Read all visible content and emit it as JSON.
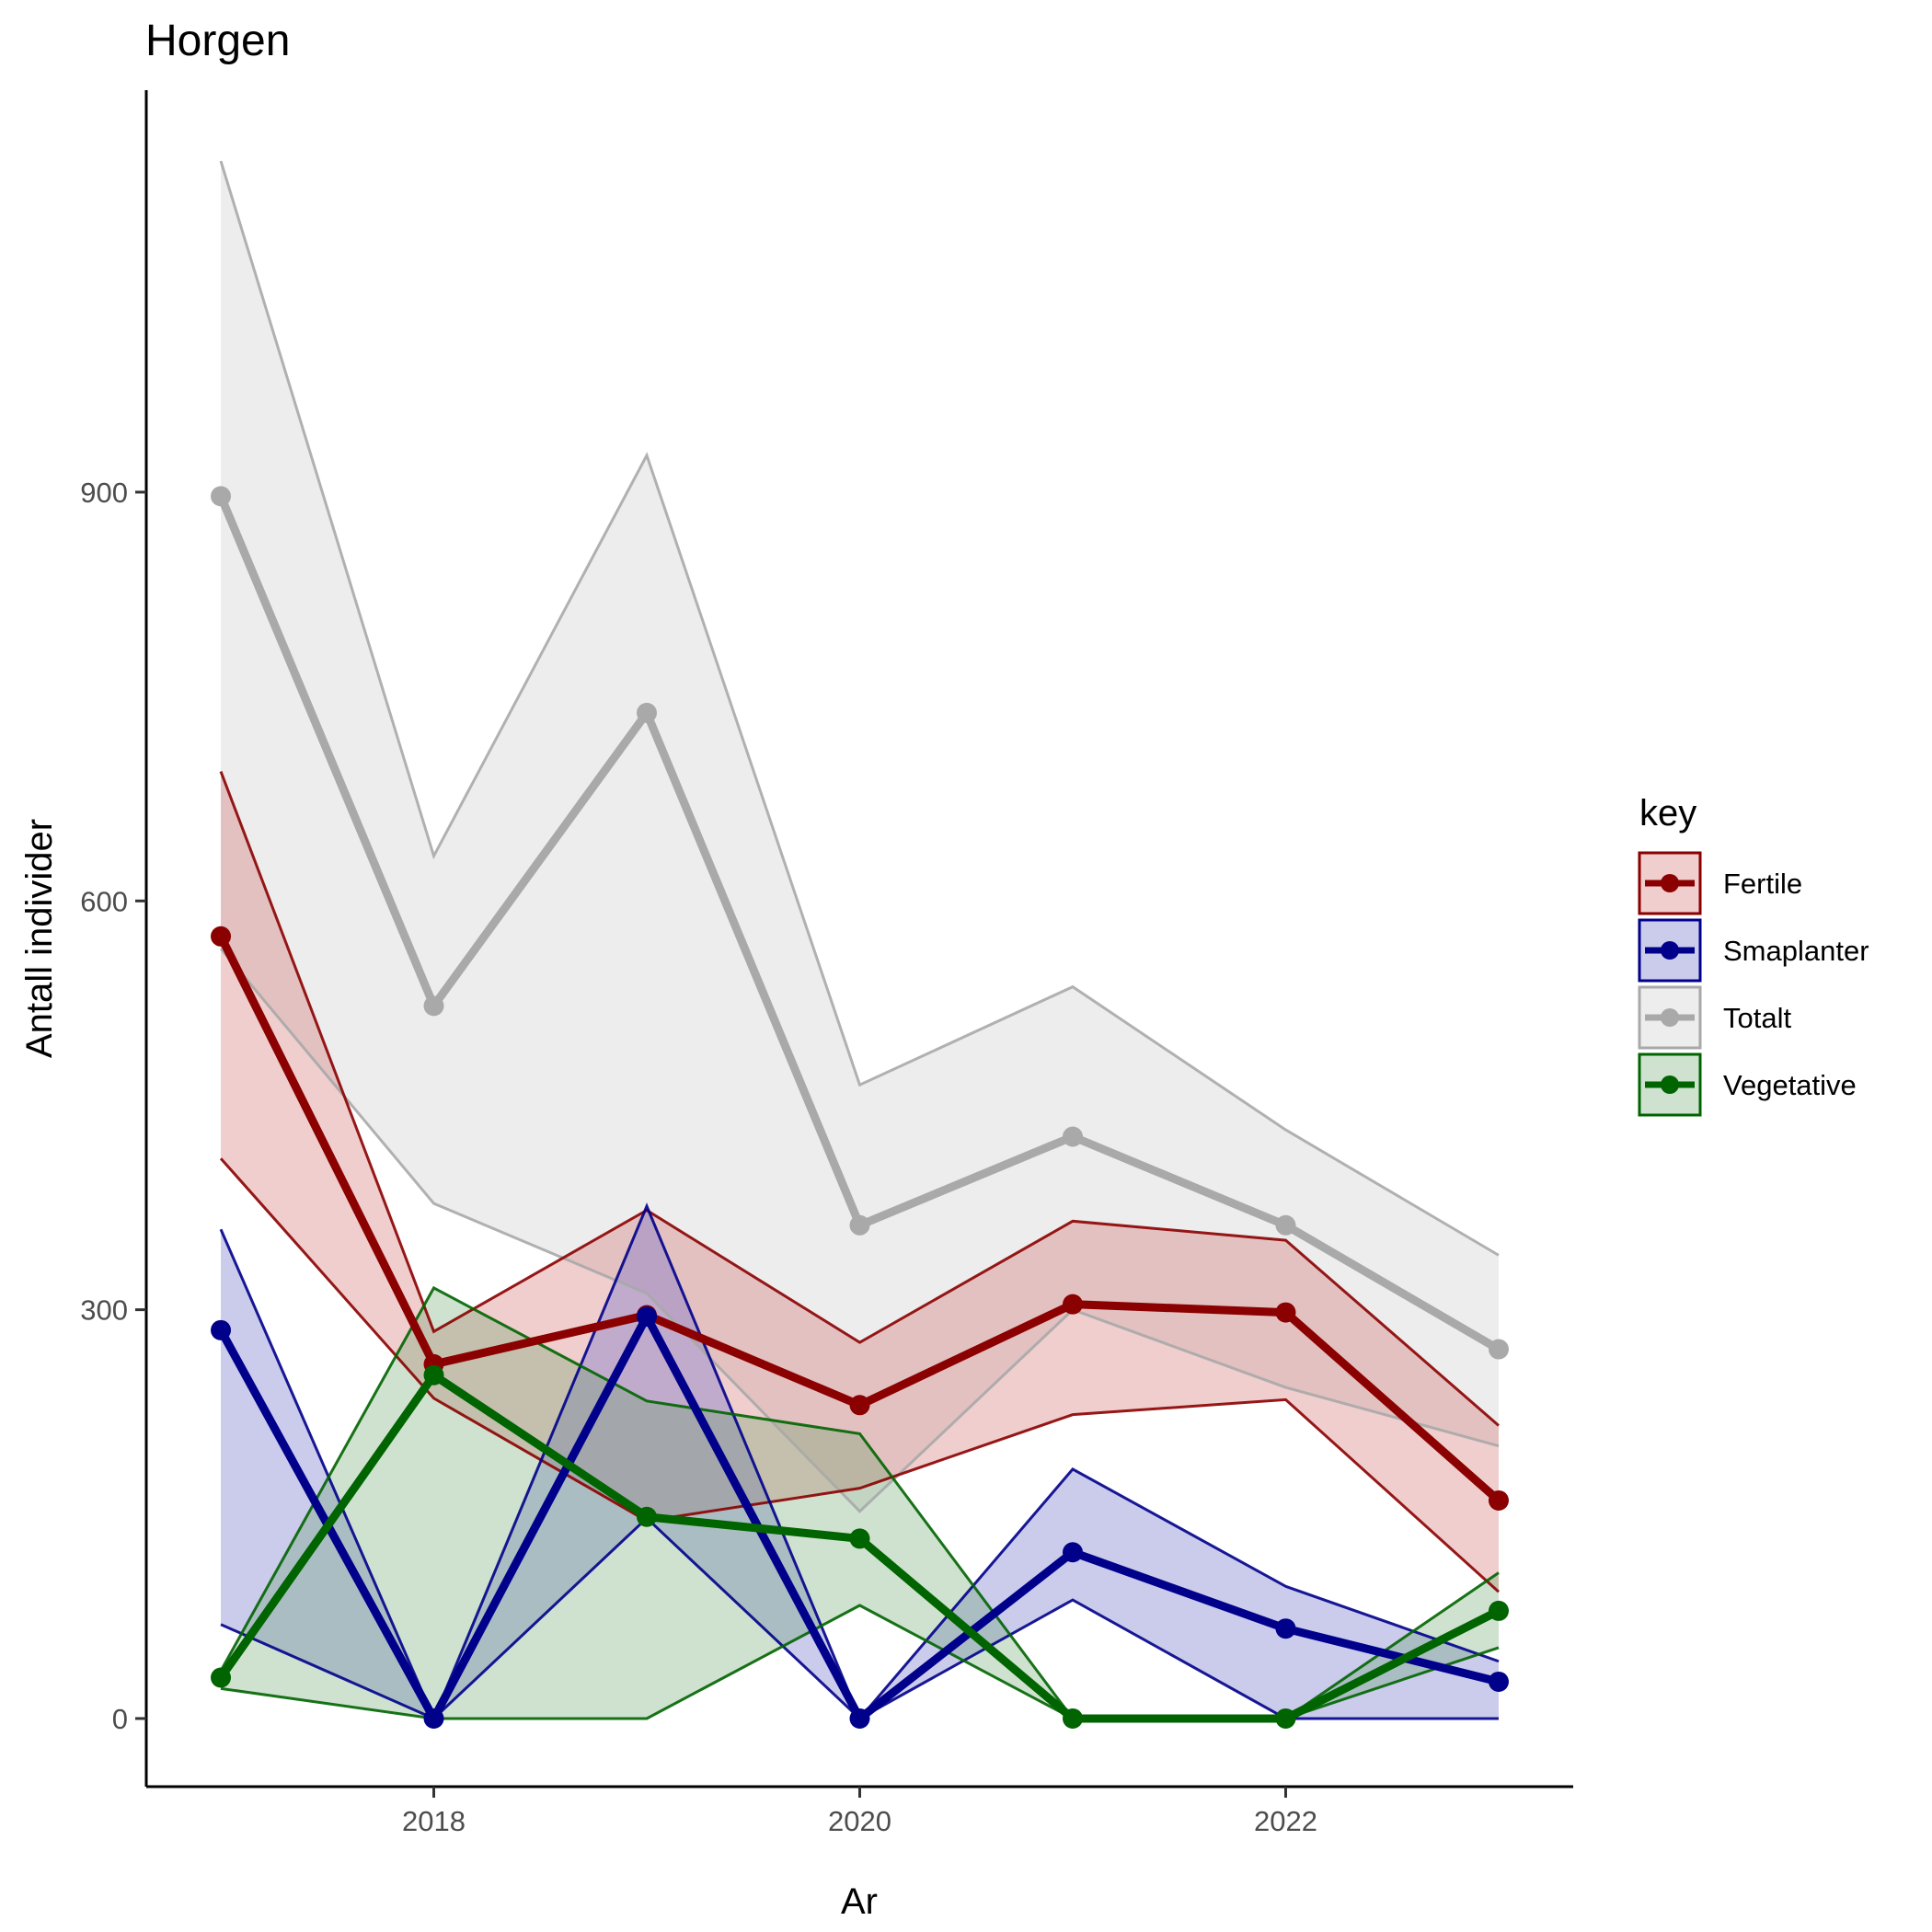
{
  "chart_data": {
    "type": "line",
    "title": "Horgen",
    "xlabel": "Ar",
    "ylabel": "Antall individer",
    "xlim": [
      2016.65,
      2023.35
    ],
    "ylim": [
      -50,
      1195
    ],
    "x_ticks": [
      2018,
      2020,
      2022
    ],
    "y_ticks": [
      0,
      300,
      600,
      900
    ],
    "x": [
      2017,
      2018,
      2019,
      2020,
      2021,
      2022,
      2023
    ],
    "grid": false,
    "legend": {
      "title": "key",
      "position": "right"
    },
    "series": [
      {
        "name": "Totalt",
        "color": "#a9a9a9",
        "fill": "#d3d3d3",
        "fill_opacity": 0.4,
        "values": [
          897,
          523,
          738,
          362,
          427,
          362,
          271
        ],
        "lower": [
          565,
          378,
          312,
          152,
          300,
          243,
          200
        ],
        "upper": [
          1143,
          633,
          927,
          465,
          537,
          432,
          340
        ]
      },
      {
        "name": "Fertile",
        "color": "#8b0000",
        "fill": "#cd5c5c",
        "fill_opacity": 0.3,
        "values": [
          574,
          260,
          296,
          230,
          304,
          298,
          160
        ],
        "lower": [
          411,
          235,
          145,
          169,
          223,
          234,
          93
        ],
        "upper": [
          695,
          284,
          373,
          276,
          365,
          351,
          215
        ]
      },
      {
        "name": "Smaplanter",
        "color": "#00008b",
        "fill": "#6a6ac8",
        "fill_opacity": 0.35,
        "values": [
          285,
          0,
          295,
          0,
          122,
          66,
          27
        ],
        "lower": [
          69,
          0,
          147,
          0,
          87,
          0,
          0
        ],
        "upper": [
          359,
          0,
          376,
          0,
          183,
          97,
          42
        ]
      },
      {
        "name": "Vegetative",
        "color": "#006400",
        "fill": "#5f9f5f",
        "fill_opacity": 0.3,
        "values": [
          30,
          252,
          148,
          132,
          0,
          0,
          79
        ],
        "lower": [
          22,
          0,
          0,
          83,
          0,
          0,
          52
        ],
        "upper": [
          35,
          316,
          233,
          209,
          0,
          0,
          107
        ]
      }
    ]
  }
}
